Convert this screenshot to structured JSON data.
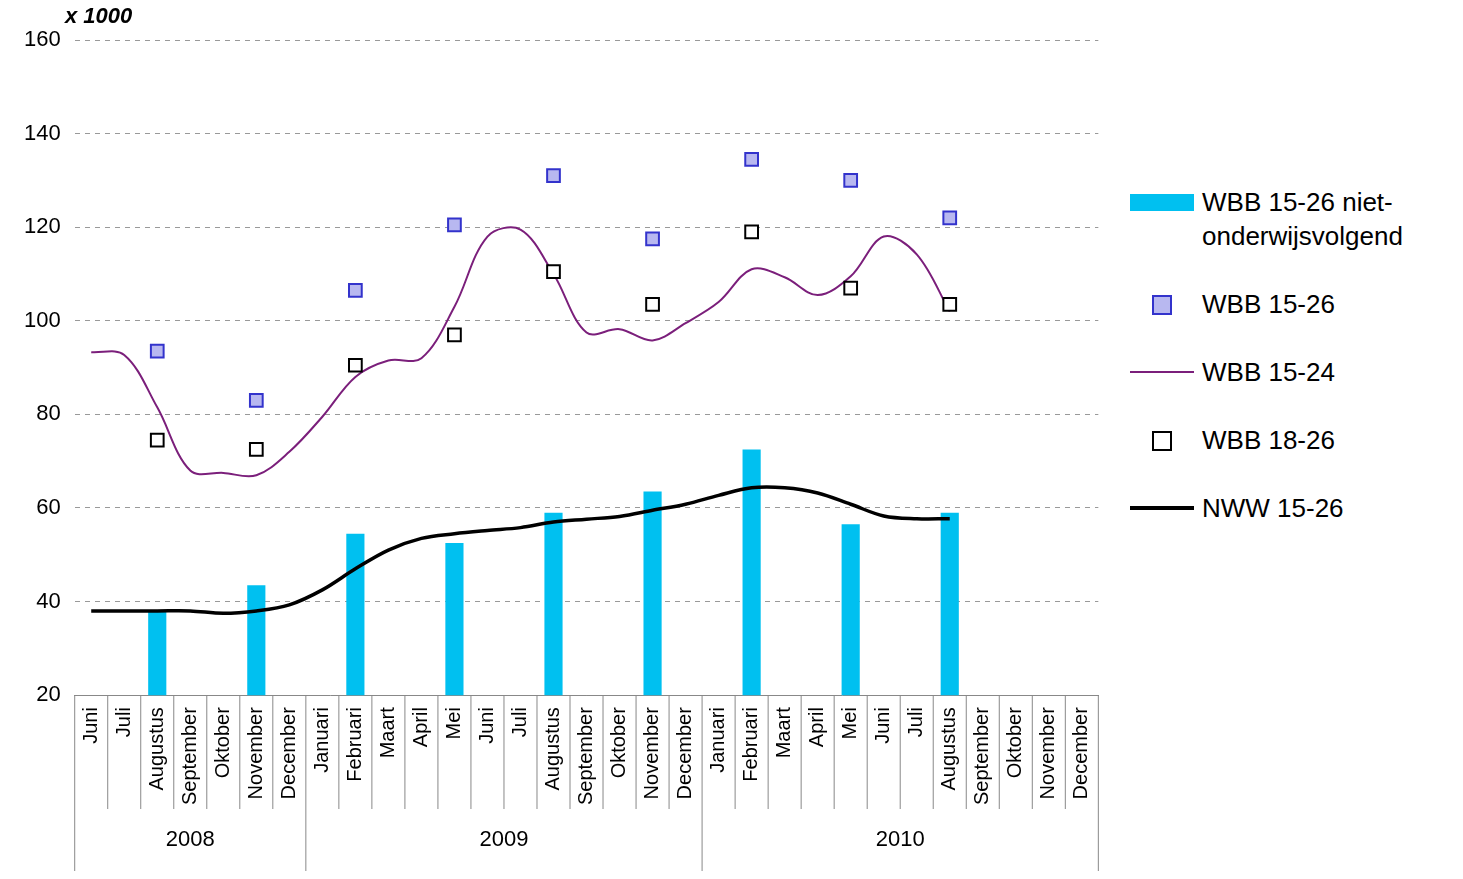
{
  "chart_data": {
    "type": "mixed",
    "ylabel": "x 1000",
    "categories": [
      "Juni",
      "Juli",
      "Augustus",
      "September",
      "Oktober",
      "November",
      "December",
      "Januari",
      "Februari",
      "Maart",
      "April",
      "Mei",
      "Juni",
      "Juli",
      "Augustus",
      "September",
      "Oktober",
      "November",
      "December",
      "Januari",
      "Februari",
      "Maart",
      "April",
      "Mei",
      "Juni",
      "Juli",
      "Augustus",
      "September",
      "Oktober",
      "November",
      "December"
    ],
    "category_groups": [
      {
        "label": "2008",
        "size": 7
      },
      {
        "label": "2009",
        "size": 12
      },
      {
        "label": "2010",
        "size": 12
      }
    ],
    "ylim": [
      20,
      160
    ],
    "yticks": [
      20,
      40,
      60,
      80,
      100,
      120,
      140,
      160
    ],
    "grid": true,
    "legend": "right",
    "series": [
      {
        "name": "WBB 15-26 niet-onderwijsvolgend",
        "type": "bar",
        "color": "#00c0f0",
        "values": [
          null,
          null,
          38,
          null,
          null,
          43.5,
          null,
          null,
          54.5,
          null,
          null,
          52.5,
          null,
          null,
          59,
          null,
          null,
          63.5,
          null,
          null,
          72.5,
          null,
          null,
          56.5,
          null,
          null,
          59,
          null,
          null,
          null,
          null
        ]
      },
      {
        "name": "WBB 15-26",
        "type": "scatter",
        "marker": "square",
        "color": "#b8b8f0",
        "values": [
          null,
          null,
          93.5,
          null,
          null,
          83,
          null,
          null,
          106.5,
          null,
          null,
          120.5,
          null,
          null,
          131,
          null,
          null,
          117.5,
          null,
          null,
          134.5,
          null,
          null,
          130,
          null,
          null,
          122,
          null,
          null,
          null,
          null
        ]
      },
      {
        "name": "WBB 15-24",
        "type": "line",
        "line_style": "solid",
        "color": "#7b1f7b",
        "values": [
          93.3,
          92.7,
          81.5,
          68,
          67.5,
          67,
          72,
          79.5,
          88,
          91.5,
          92,
          103,
          118,
          119.5,
          110,
          97.5,
          98.2,
          95.8,
          99.5,
          104,
          111,
          109.3,
          105.5,
          109.5,
          118,
          114.2,
          102,
          null,
          null,
          null,
          null
        ]
      },
      {
        "name": "WBB 18-26",
        "type": "scatter",
        "marker": "square",
        "color": "#ffffff",
        "values": [
          null,
          null,
          74.5,
          null,
          null,
          72.5,
          null,
          null,
          90.5,
          null,
          null,
          97,
          null,
          null,
          110.5,
          null,
          null,
          103.5,
          null,
          null,
          119,
          null,
          null,
          107,
          null,
          null,
          103.5,
          null,
          null,
          null,
          null
        ]
      },
      {
        "name": "NWW 15-26",
        "type": "line",
        "line_style": "solid",
        "color": "#000000",
        "values": [
          38,
          38,
          38,
          38,
          37.5,
          38,
          39.3,
          42.5,
          47,
          51,
          53.5,
          54.5,
          55.2,
          55.8,
          57,
          57.6,
          58.2,
          59.5,
          60.8,
          62.7,
          64.3,
          64.3,
          63.2,
          60.8,
          58.3,
          57.7,
          57.7,
          null,
          null,
          null,
          null
        ]
      }
    ]
  }
}
